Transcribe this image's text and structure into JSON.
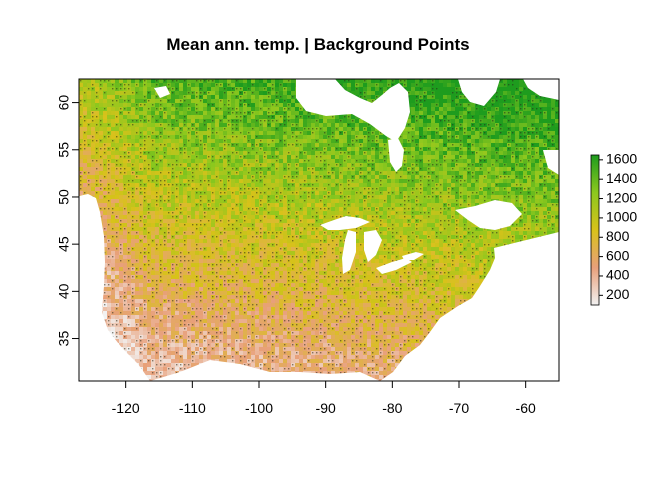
{
  "title": "Mean ann. temp. | Background Points",
  "map": {
    "type": "raster",
    "xlim": [
      -127,
      -55
    ],
    "ylim": [
      30.5,
      62.5
    ],
    "x_ticks": [
      -120,
      -110,
      -100,
      -90,
      -80,
      -70,
      -60
    ],
    "y_ticks": [
      35,
      40,
      45,
      50,
      55,
      60
    ],
    "x_tick_labels": [
      "-120",
      "-110",
      "-100",
      "-90",
      "-80",
      "-70",
      "-60"
    ],
    "y_tick_labels": [
      "35",
      "40",
      "45",
      "50",
      "55",
      "60"
    ]
  },
  "legend": {
    "range": [
      100,
      1650
    ],
    "ticks": [
      200,
      400,
      600,
      800,
      1000,
      1200,
      1400,
      1600
    ],
    "tick_labels": [
      "200",
      "400",
      "600",
      "800",
      "1000",
      "1200",
      "1400",
      "1600"
    ],
    "colors": [
      "#f2f2f2",
      "#e8a07a",
      "#d8c21a",
      "#8cc81e",
      "#1e9c1e"
    ]
  },
  "colors": {
    "water": "#ffffff",
    "frame": "#000000"
  }
}
